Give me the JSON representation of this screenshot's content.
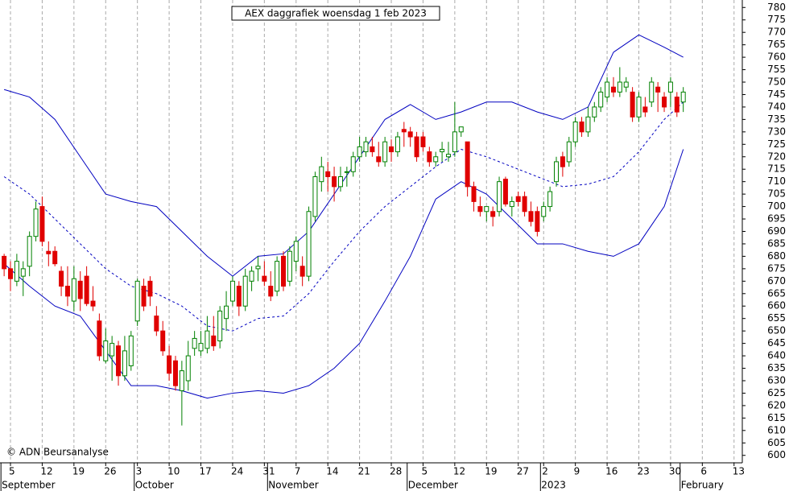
{
  "chart_data": {
    "type": "candlestick",
    "title": "AEX daggrafiek woensdag 1 feb 2023",
    "watermark": "© ADN Beursanalyse",
    "xlim": [
      -0.65,
      116.3
    ],
    "ylim": [
      597,
      783
    ],
    "yticks": [
      600,
      605,
      610,
      615,
      620,
      625,
      630,
      635,
      640,
      645,
      650,
      655,
      660,
      665,
      670,
      675,
      680,
      685,
      690,
      695,
      700,
      705,
      710,
      715,
      720,
      725,
      730,
      735,
      740,
      745,
      750,
      755,
      760,
      765,
      770,
      775,
      780
    ],
    "xticks": [
      {
        "value": 1,
        "label": "5"
      },
      {
        "value": 6,
        "label": "12"
      },
      {
        "value": 11,
        "label": "19"
      },
      {
        "value": 16,
        "label": "26"
      },
      {
        "value": 21,
        "label": "3"
      },
      {
        "value": 26,
        "label": "10"
      },
      {
        "value": 31,
        "label": "17"
      },
      {
        "value": 36,
        "label": "24"
      },
      {
        "value": 41,
        "label": "31"
      },
      {
        "value": 46,
        "label": "7"
      },
      {
        "value": 51,
        "label": "14"
      },
      {
        "value": 56,
        "label": "21"
      },
      {
        "value": 61,
        "label": "28"
      },
      {
        "value": 66,
        "label": "5"
      },
      {
        "value": 71,
        "label": "12"
      },
      {
        "value": 76,
        "label": "19"
      },
      {
        "value": 81,
        "label": "27"
      },
      {
        "value": 85,
        "label": "2"
      },
      {
        "value": 90,
        "label": "9"
      },
      {
        "value": 95,
        "label": "16"
      },
      {
        "value": 100,
        "label": "23"
      },
      {
        "value": 105,
        "label": "30"
      },
      {
        "value": 110,
        "label": "6"
      },
      {
        "value": 115,
        "label": "13"
      }
    ],
    "month_labels": [
      {
        "value": 0,
        "label": "September"
      },
      {
        "value": 21,
        "label": "October"
      },
      {
        "value": 42,
        "label": "November"
      },
      {
        "value": 64,
        "label": "December"
      },
      {
        "value": 85,
        "label": "2023"
      },
      {
        "value": 107,
        "label": "February"
      }
    ],
    "up_color": "#008000",
    "down_color": "#e00000",
    "x": [
      0,
      1,
      2,
      3,
      4,
      5,
      6,
      7,
      8,
      9,
      10,
      11,
      12,
      13,
      14,
      15,
      16,
      17,
      18,
      19,
      20,
      21,
      22,
      23,
      24,
      25,
      26,
      27,
      28,
      29,
      30,
      31,
      32,
      33,
      34,
      35,
      36,
      37,
      38,
      39,
      40,
      41,
      42,
      43,
      44,
      45,
      46,
      47,
      48,
      49,
      50,
      51,
      52,
      53,
      54,
      55,
      56,
      57,
      58,
      59,
      60,
      61,
      62,
      63,
      64,
      65,
      66,
      67,
      68,
      69,
      70,
      71,
      72,
      73,
      74,
      75,
      76,
      77,
      78,
      79,
      80,
      81,
      82,
      83,
      84,
      85,
      86,
      87,
      88,
      89,
      90,
      91,
      92,
      93,
      94,
      95,
      96,
      97,
      98,
      99,
      100,
      101,
      102,
      103,
      104,
      105,
      106,
      107
    ],
    "ohlc": [
      [
        680,
        681,
        672,
        675
      ],
      [
        675,
        678,
        666,
        671
      ],
      [
        670,
        681,
        668,
        678
      ],
      [
        672,
        678,
        664,
        675
      ],
      [
        676,
        690,
        672,
        688
      ],
      [
        688,
        702,
        686,
        699
      ],
      [
        700,
        704,
        684,
        686
      ],
      [
        682,
        686,
        676,
        681
      ],
      [
        682,
        684,
        676,
        677
      ],
      [
        674,
        676,
        664,
        668
      ],
      [
        668,
        676,
        660,
        664
      ],
      [
        662,
        676,
        658,
        671
      ],
      [
        670,
        674,
        658,
        663
      ],
      [
        672,
        676,
        660,
        661
      ],
      [
        662,
        668,
        658,
        660
      ],
      [
        654,
        657,
        638,
        640
      ],
      [
        638,
        651,
        637,
        646
      ],
      [
        640,
        648,
        630,
        645
      ],
      [
        644,
        646,
        628,
        632
      ],
      [
        632,
        648,
        630,
        642
      ],
      [
        636,
        650,
        634,
        648
      ],
      [
        654,
        671,
        652,
        670
      ],
      [
        668,
        671,
        658,
        660
      ],
      [
        670,
        672,
        660,
        664
      ],
      [
        656,
        660,
        648,
        650
      ],
      [
        650,
        654,
        640,
        642
      ],
      [
        640,
        644,
        630,
        633
      ],
      [
        638,
        640,
        626,
        628
      ],
      [
        626,
        638,
        612,
        634
      ],
      [
        630,
        646,
        626,
        640
      ],
      [
        643,
        650,
        640,
        647
      ],
      [
        642,
        650,
        640,
        645
      ],
      [
        643,
        656,
        641,
        650
      ],
      [
        648,
        656,
        642,
        644
      ],
      [
        646,
        660,
        643,
        658
      ],
      [
        655,
        666,
        650,
        660
      ],
      [
        662,
        672,
        660,
        670
      ],
      [
        668,
        670,
        656,
        660
      ],
      [
        660,
        675,
        658,
        672
      ],
      [
        670,
        676,
        666,
        674
      ],
      [
        675,
        680,
        670,
        676
      ],
      [
        672,
        678,
        668,
        670
      ],
      [
        668,
        674,
        662,
        664
      ],
      [
        666,
        680,
        664,
        678
      ],
      [
        680,
        682,
        666,
        668
      ],
      [
        670,
        684,
        668,
        682
      ],
      [
        678,
        688,
        674,
        686
      ],
      [
        676,
        680,
        668,
        672
      ],
      [
        672,
        700,
        670,
        698
      ],
      [
        696,
        714,
        694,
        712
      ],
      [
        710,
        720,
        706,
        716
      ],
      [
        714,
        718,
        706,
        712
      ],
      [
        712,
        716,
        702,
        708
      ],
      [
        708,
        716,
        706,
        712
      ],
      [
        714,
        716,
        708,
        714
      ],
      [
        714,
        722,
        712,
        720
      ],
      [
        720,
        728,
        718,
        724
      ],
      [
        722,
        728,
        720,
        726
      ],
      [
        724,
        728,
        720,
        722
      ],
      [
        720,
        726,
        716,
        718
      ],
      [
        718,
        728,
        716,
        726
      ],
      [
        724,
        727,
        718,
        722
      ],
      [
        722,
        730,
        720,
        728
      ],
      [
        731,
        734,
        724,
        730
      ],
      [
        730,
        732,
        724,
        728
      ],
      [
        728,
        730,
        718,
        720
      ],
      [
        728,
        730,
        722,
        724
      ],
      [
        722,
        724,
        716,
        718
      ],
      [
        718,
        722,
        716,
        720
      ],
      [
        722,
        726,
        718,
        723
      ],
      [
        720,
        726,
        718,
        721
      ],
      [
        722,
        742,
        720,
        730
      ],
      [
        730,
        732,
        728,
        732
      ],
      [
        726,
        726,
        704,
        708
      ],
      [
        708,
        710,
        698,
        702
      ],
      [
        700,
        704,
        696,
        698
      ],
      [
        698,
        700,
        694,
        700
      ],
      [
        698,
        700,
        692,
        696
      ],
      [
        698,
        712,
        696,
        710
      ],
      [
        711,
        712,
        700,
        701
      ],
      [
        700,
        704,
        696,
        702
      ],
      [
        704,
        706,
        700,
        702
      ],
      [
        704,
        706,
        696,
        698
      ],
      [
        698,
        702,
        692,
        694
      ],
      [
        698,
        700,
        688,
        690
      ],
      [
        696,
        702,
        694,
        700
      ],
      [
        700,
        708,
        698,
        706
      ],
      [
        710,
        720,
        708,
        718
      ],
      [
        720,
        722,
        712,
        716
      ],
      [
        718,
        728,
        716,
        726
      ],
      [
        726,
        736,
        724,
        734
      ],
      [
        734,
        736,
        728,
        730
      ],
      [
        730,
        740,
        728,
        736
      ],
      [
        736,
        742,
        734,
        740
      ],
      [
        740,
        748,
        738,
        746
      ],
      [
        744,
        752,
        742,
        750
      ],
      [
        748,
        752,
        744,
        746
      ],
      [
        746,
        756,
        744,
        750
      ],
      [
        748,
        752,
        746,
        750
      ],
      [
        746,
        748,
        734,
        736
      ],
      [
        736,
        746,
        734,
        744
      ],
      [
        740,
        744,
        736,
        738
      ],
      [
        742,
        752,
        740,
        750
      ],
      [
        748,
        750,
        738,
        746
      ],
      [
        744,
        746,
        738,
        740
      ],
      [
        746,
        752,
        740,
        750
      ],
      [
        744,
        746,
        736,
        738
      ],
      [
        742,
        748,
        738,
        746
      ]
    ],
    "bands": [
      {
        "color": "#0000c0",
        "style": "solid",
        "x": [
          0,
          4,
          8,
          12,
          16,
          20,
          24,
          28,
          32,
          36,
          40,
          44,
          48,
          52,
          56,
          60,
          64,
          68,
          72,
          76,
          80,
          84,
          88,
          92,
          96,
          100,
          104,
          107
        ],
        "values": [
          747,
          744,
          735,
          720,
          705,
          702,
          700,
          690,
          680,
          672,
          680,
          681,
          690,
          705,
          720,
          735,
          741,
          735,
          738,
          742,
          742,
          738,
          735,
          740,
          762,
          769,
          764,
          760
        ]
      },
      {
        "color": "#0000c0",
        "style": "dashed",
        "x": [
          0,
          4,
          8,
          12,
          16,
          20,
          24,
          28,
          32,
          36,
          40,
          44,
          48,
          52,
          56,
          60,
          64,
          68,
          72,
          76,
          80,
          84,
          88,
          92,
          96,
          100,
          104,
          107
        ],
        "values": [
          712,
          705,
          695,
          685,
          675,
          668,
          665,
          660,
          652,
          650,
          655,
          656,
          665,
          678,
          690,
          700,
          708,
          716,
          723,
          720,
          716,
          712,
          708,
          709,
          712,
          722,
          735,
          742
        ]
      },
      {
        "color": "#0000c0",
        "style": "solid",
        "x": [
          0,
          4,
          8,
          12,
          16,
          20,
          24,
          28,
          32,
          36,
          40,
          44,
          48,
          52,
          56,
          60,
          64,
          68,
          72,
          76,
          80,
          84,
          88,
          92,
          96,
          100,
          104,
          107
        ],
        "values": [
          677,
          668,
          660,
          656,
          642,
          628,
          628,
          626,
          623,
          625,
          626,
          625,
          628,
          635,
          645,
          662,
          680,
          703,
          710,
          705,
          695,
          685,
          685,
          682,
          680,
          685,
          700,
          723
        ]
      }
    ]
  }
}
